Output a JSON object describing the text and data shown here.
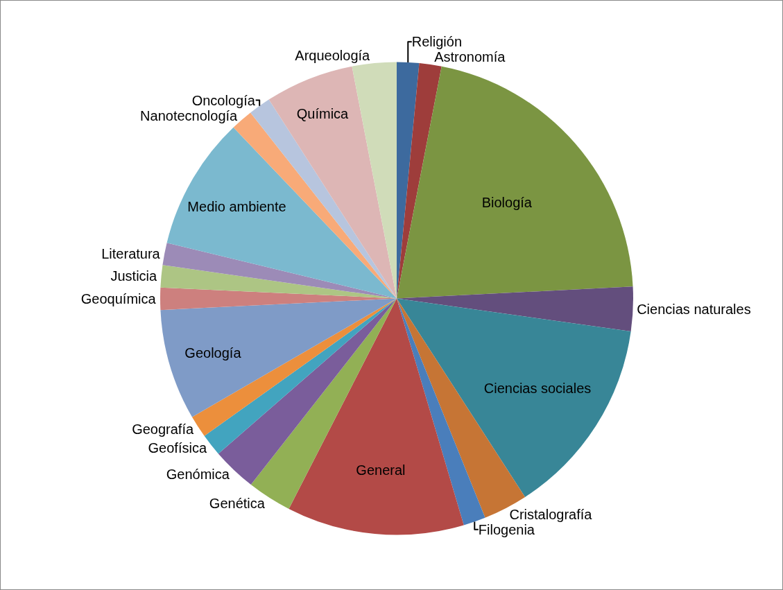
{
  "chart_data": {
    "type": "pie",
    "legend": false,
    "categories": [
      "Religión",
      "Astronomía",
      "Biología",
      "Ciencias naturales",
      "Ciencias sociales",
      "Cristalografía",
      "Filogenia",
      "General",
      "Genética",
      "Genómica",
      "Geofísica",
      "Geografía",
      "Geología",
      "Geoquímica",
      "Justicia",
      "Literatura",
      "Medio ambiente",
      "Nanotecnología",
      "Oncología",
      "Química",
      "Arqueología"
    ],
    "values": [
      1.52,
      1.52,
      21.16,
      3.03,
      13.64,
      3.03,
      1.52,
      12.12,
      3.03,
      3.03,
      1.52,
      1.52,
      7.58,
      1.52,
      1.52,
      1.52,
      9.09,
      1.52,
      1.52,
      6.06,
      3.03
    ],
    "colors": [
      "#3d6a9e",
      "#9e3d3b",
      "#7b9542",
      "#634e7d",
      "#388697",
      "#c67535",
      "#4a7ebb",
      "#b34a47",
      "#92b055",
      "#7a5d9b",
      "#42a4bf",
      "#ec8f3c",
      "#7f9bc7",
      "#cd807e",
      "#adc584",
      "#9c8bb7",
      "#7bb9cf",
      "#f8aa78",
      "#b7c5de",
      "#ddb6b5",
      "#d0dcb9"
    ]
  }
}
